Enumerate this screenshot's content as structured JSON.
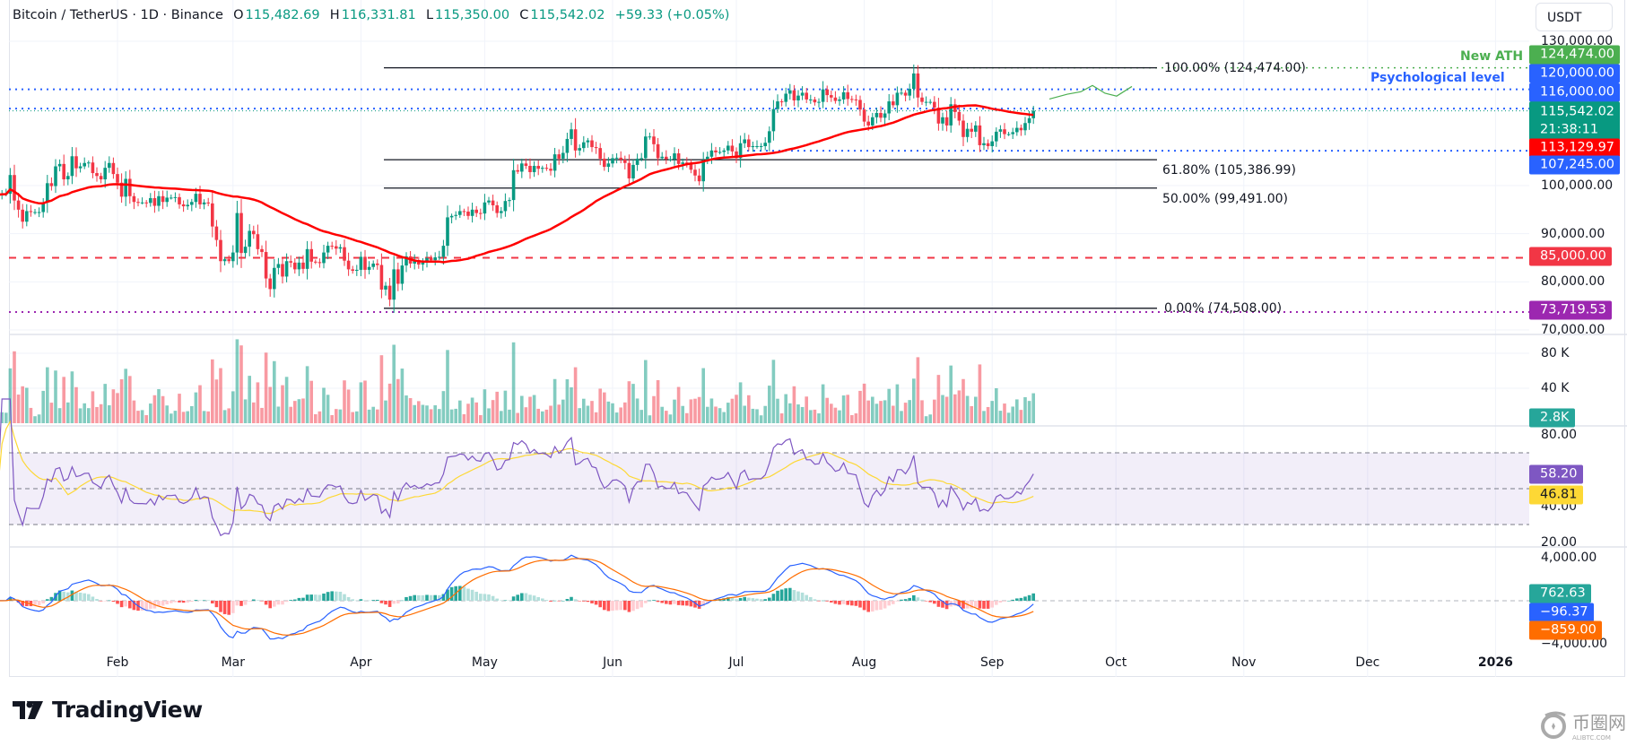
{
  "header": {
    "symbol": "Bitcoin / TetherUS · 1D · Binance",
    "o_label": "O",
    "o": "115,482.69",
    "h_label": "H",
    "h": "116,331.81",
    "l_label": "L",
    "l": "115,350.00",
    "c_label": "C",
    "c": "115,542.02",
    "change": "+59.33 (+0.05%)"
  },
  "axis": {
    "currency": "USDT",
    "price_ticks": [
      {
        "v": 130000,
        "t": "130,000.00"
      },
      {
        "v": 100000,
        "t": "100,000.00"
      },
      {
        "v": 90000,
        "t": "90,000.00"
      },
      {
        "v": 80000,
        "t": "80,000.00"
      },
      {
        "v": 70000,
        "t": "70,000.00"
      }
    ],
    "volume_ticks": [
      {
        "v": 80,
        "t": "80 K"
      },
      {
        "v": 40,
        "t": "40 K"
      }
    ],
    "rsi_ticks": [
      {
        "v": 80,
        "t": "80.00"
      },
      {
        "v": 40,
        "t": "40.00"
      },
      {
        "v": 20,
        "t": "20.00"
      }
    ],
    "macd_ticks": [
      {
        "v": 4000,
        "t": "4,000.00"
      },
      {
        "v": -4000,
        "t": "−4,000.00"
      }
    ],
    "time_ticks": [
      {
        "date": "2025-02-01",
        "t": "Feb"
      },
      {
        "date": "2025-03-01",
        "t": "Mar"
      },
      {
        "date": "2025-04-01",
        "t": "Apr"
      },
      {
        "date": "2025-05-01",
        "t": "May"
      },
      {
        "date": "2025-06-01",
        "t": "Jun"
      },
      {
        "date": "2025-07-01",
        "t": "Jul"
      },
      {
        "date": "2025-08-01",
        "t": "Aug"
      },
      {
        "date": "2025-09-01",
        "t": "Sep"
      },
      {
        "date": "2025-10-01",
        "t": "Oct"
      },
      {
        "date": "2025-11-01",
        "t": "Nov"
      },
      {
        "date": "2025-12-01",
        "t": "Dec"
      },
      {
        "date": "2026-01-01",
        "t": "2026",
        "bold": true
      }
    ]
  },
  "badges": [
    {
      "name": "ath",
      "v": 124474,
      "t": "124,474.00",
      "color": "#4caf50"
    },
    {
      "name": "psych-120k",
      "v": 120000,
      "t": "120,000.00",
      "color": "#2962ff"
    },
    {
      "name": "level-116k",
      "v": 116000,
      "t": "116,000.00",
      "color": "#2962ff"
    },
    {
      "name": "last-price",
      "v": 115542.02,
      "t": "115,542.02",
      "sub": "21:38:11",
      "color": "#089981"
    },
    {
      "name": "moving-average",
      "v": 113129.97,
      "t": "113,129.97",
      "color": "#ff0000"
    },
    {
      "name": "support-107k",
      "v": 107245,
      "t": "107,245.00",
      "color": "#2962ff"
    },
    {
      "name": "level-85k",
      "v": 85000,
      "t": "85,000.00",
      "color": "#f23645"
    },
    {
      "name": "level-73k",
      "v": 73719.53,
      "t": "73,719.53",
      "color": "#9c27b0"
    }
  ],
  "pane_badges": {
    "volume": {
      "t": "2.8K",
      "color": "#26a69a"
    },
    "rsi": {
      "t": "58.20",
      "color": "#7e57c2"
    },
    "rsi_ma": {
      "t": "46.81",
      "color": "#fdd835"
    },
    "macd_hist": {
      "t": "762.63",
      "color": "#26a69a"
    },
    "macd": {
      "t": "−96.37",
      "color": "#2962ff"
    },
    "macd_signal": {
      "t": "−859.00",
      "color": "#ff6d00"
    }
  },
  "annotations": {
    "new_ath": {
      "t": "New ATH",
      "color": "#4caf50"
    },
    "psychological": {
      "t": "Psychological level",
      "color": "#2962ff"
    }
  },
  "fib_levels": [
    {
      "t": "100.00% (124,474.00)",
      "v": 124474
    },
    {
      "t": "61.80% (105,386.99)",
      "v": 105386.99
    },
    {
      "t": "50.00% (99,491.00)",
      "v": 99491
    },
    {
      "t": "0.00% (74,508.00)",
      "v": 74508
    }
  ],
  "branding": {
    "logo": "TradingView",
    "watermark": "币圈网",
    "watermark_sub": "ALIBTC.COM"
  },
  "chart_data": {
    "type": "candlestick",
    "title": "Bitcoin / TetherUS · 1D · Binance",
    "start_date": "2025-01-03",
    "interval": "1D",
    "ylim": [
      70000,
      130000
    ],
    "colors": {
      "up": "#089981",
      "down": "#f23645",
      "ma": "#ff0000",
      "rsi": "#7e57c2",
      "rsi_ma": "#fdd835",
      "macd": "#2962ff",
      "signal": "#ff6d00"
    },
    "horizontal_levels": [
      124474,
      120000,
      116000,
      107245,
      85000,
      73719.53
    ],
    "closes": [
      98100,
      98300,
      98300,
      102200,
      96900,
      95000,
      92500,
      94700,
      94500,
      94500,
      94500,
      96500,
      100500,
      99900,
      104000,
      104500,
      101300,
      102000,
      106100,
      103600,
      104000,
      104700,
      104800,
      102600,
      102000,
      101300,
      103700,
      104700,
      102400,
      100600,
      97700,
      101400,
      97800,
      96600,
      96500,
      96500,
      96400,
      97400,
      95800,
      97800,
      96600,
      97500,
      97500,
      97600,
      96100,
      95700,
      96000,
      96600,
      98300,
      96100,
      96500,
      96300,
      91500,
      88700,
      84300,
      84700,
      84300,
      86100,
      94300,
      86000,
      87300,
      90600,
      89900,
      86800,
      86200,
      80700,
      78500,
      82900,
      83700,
      81100,
      84300,
      84000,
      82600,
      84000,
      82700,
      86800,
      84200,
      84100,
      83900,
      86100,
      87500,
      87400,
      86900,
      87200,
      84400,
      82600,
      82300,
      82500,
      85200,
      82500,
      83100,
      83800,
      83500,
      78400,
      79200,
      76300,
      82600,
      79600,
      83400,
      85300,
      83800,
      84500,
      83600,
      84000,
      84900,
      84500,
      85100,
      85200,
      87500,
      93400,
      93700,
      93900,
      94700,
      94600,
      93700,
      95000,
      94300,
      94200,
      96500,
      96900,
      95900,
      94300,
      94700,
      96800,
      97000,
      103200,
      102900,
      104600,
      104100,
      102800,
      104100,
      103500,
      103700,
      103500,
      103100,
      106500,
      105600,
      106800,
      109700,
      111700,
      107300,
      107800,
      109000,
      109400,
      108000,
      107800,
      105600,
      103900,
      104600,
      105700,
      105800,
      105400,
      104700,
      101500,
      104300,
      105600,
      105700,
      110200,
      110200,
      108600,
      105700,
      106000,
      105500,
      105500,
      106700,
      104500,
      104800,
      104600,
      103300,
      102100,
      100900,
      105300,
      106000,
      107300,
      106900,
      107000,
      107300,
      108300,
      107100,
      105700,
      108800,
      109600,
      108000,
      108200,
      108200,
      108200,
      108900,
      111300,
      115900,
      117500,
      117400,
      119100,
      119800,
      117700,
      118700,
      119300,
      117900,
      117900,
      117300,
      117400,
      120000,
      118800,
      118300,
      117600,
      117900,
      119400,
      118000,
      117900,
      117800,
      115800,
      113300,
      112500,
      114200,
      115100,
      114100,
      115000,
      117500,
      116700,
      119300,
      119300,
      118700,
      120100,
      123300,
      118300,
      117400,
      117400,
      117400,
      116200,
      112900,
      114200,
      112500,
      116900,
      115300,
      113500,
      110100,
      111800,
      111200,
      112500,
      108400,
      108800,
      108200,
      109200,
      111200,
      111700,
      110700,
      110700,
      111100,
      112000,
      111500,
      113000,
      114000,
      115542.02
    ]
  }
}
